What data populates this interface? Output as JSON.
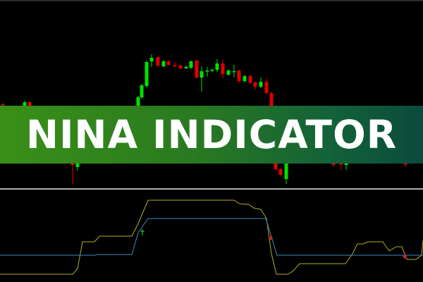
{
  "banner": {
    "title": "NINA INDICATOR"
  },
  "colors": {
    "background": "#000000",
    "bull": "#00e000",
    "bear": "#e00000",
    "signal_line": "#b0b020",
    "baseline": "#3a8cc0",
    "separator": "#b0b0b0"
  },
  "chart_data": [
    {
      "type": "candlestick",
      "candles": [
        {
          "x": 4,
          "o": 252,
          "c": 251,
          "h": 254,
          "l": 249
        },
        {
          "x": 35,
          "o": 250,
          "c": 255,
          "h": 257,
          "l": 248
        },
        {
          "x": 42,
          "o": 255,
          "c": 250,
          "h": 256,
          "l": 248
        },
        {
          "x": 103,
          "o": 170,
          "c": 166,
          "h": 172,
          "l": 139
        },
        {
          "x": 110,
          "o": 163,
          "c": 168,
          "h": 170,
          "l": 158
        },
        {
          "x": 196,
          "o": 250,
          "c": 262,
          "h": 264,
          "l": 248
        },
        {
          "x": 201,
          "o": 262,
          "c": 279,
          "h": 281,
          "l": 260
        },
        {
          "x": 208,
          "o": 278,
          "c": 312,
          "h": 314,
          "l": 276
        },
        {
          "x": 215,
          "o": 313,
          "c": 318,
          "h": 323,
          "l": 305
        },
        {
          "x": 224,
          "o": 319,
          "c": 307,
          "h": 320,
          "l": 305
        },
        {
          "x": 232,
          "o": 306,
          "c": 313,
          "h": 315,
          "l": 304
        },
        {
          "x": 239,
          "o": 313,
          "c": 308,
          "h": 315,
          "l": 307
        },
        {
          "x": 248,
          "o": 308,
          "c": 306,
          "h": 312,
          "l": 305
        },
        {
          "x": 256,
          "o": 307,
          "c": 303,
          "h": 309,
          "l": 302
        },
        {
          "x": 264,
          "o": 303,
          "c": 305,
          "h": 307,
          "l": 302
        },
        {
          "x": 271,
          "o": 304,
          "c": 313,
          "h": 314,
          "l": 302
        },
        {
          "x": 279,
          "o": 314,
          "c": 290,
          "h": 315,
          "l": 288
        },
        {
          "x": 286,
          "o": 290,
          "c": 299,
          "h": 306,
          "l": 270
        },
        {
          "x": 294,
          "o": 299,
          "c": 300,
          "h": 305,
          "l": 291
        },
        {
          "x": 301,
          "o": 300,
          "c": 301,
          "h": 303,
          "l": 298
        },
        {
          "x": 308,
          "o": 301,
          "c": 310,
          "h": 316,
          "l": 298
        },
        {
          "x": 316,
          "o": 310,
          "c": 295,
          "h": 315,
          "l": 289
        },
        {
          "x": 324,
          "o": 294,
          "c": 300,
          "h": 302,
          "l": 293
        },
        {
          "x": 332,
          "o": 298,
          "c": 299,
          "h": 308,
          "l": 290
        },
        {
          "x": 339,
          "o": 300,
          "c": 285,
          "h": 301,
          "l": 282
        },
        {
          "x": 347,
          "o": 285,
          "c": 292,
          "h": 294,
          "l": 283
        },
        {
          "x": 355,
          "o": 292,
          "c": 283,
          "h": 295,
          "l": 281
        },
        {
          "x": 362,
          "o": 283,
          "c": 277,
          "h": 285,
          "l": 273
        },
        {
          "x": 370,
          "o": 277,
          "c": 284,
          "h": 290,
          "l": 275
        },
        {
          "x": 378,
          "o": 284,
          "c": 268,
          "h": 288,
          "l": 266
        },
        {
          "x": 385,
          "o": 268,
          "c": 250,
          "h": 270,
          "l": 248
        },
        {
          "x": 391,
          "o": 168,
          "c": 160,
          "h": 170,
          "l": 158
        },
        {
          "x": 398,
          "o": 160,
          "c": 152,
          "h": 162,
          "l": 150
        },
        {
          "x": 406,
          "o": 146,
          "c": 168,
          "h": 170,
          "l": 139
        },
        {
          "x": 473,
          "o": 168,
          "c": 166,
          "h": 170,
          "l": 163
        },
        {
          "x": 484,
          "o": 168,
          "c": 167,
          "h": 170,
          "l": 158
        },
        {
          "x": 491,
          "o": 166,
          "c": 168,
          "h": 170,
          "l": 159
        },
        {
          "x": 575,
          "o": 168,
          "c": 167,
          "h": 170,
          "l": 163
        }
      ]
    },
    {
      "type": "line",
      "series": [
        {
          "color": "#b0b020",
          "points": [
            [
              0,
              11
            ],
            [
              103,
              11
            ],
            [
              110,
              19
            ],
            [
              117,
              57
            ],
            [
              134,
              57
            ],
            [
              141,
              65
            ],
            [
              187,
              65
            ],
            [
              196,
              83
            ],
            [
              210,
              116
            ],
            [
              332,
              116
            ],
            [
              340,
              111
            ],
            [
              353,
              110
            ],
            [
              360,
              105
            ],
            [
              370,
              103
            ],
            [
              378,
              90
            ],
            [
              385,
              40
            ],
            [
              392,
              11
            ],
            [
              408,
              11
            ],
            [
              415,
              15
            ],
            [
              425,
              26
            ],
            [
              490,
              26
            ],
            [
              500,
              40
            ],
            [
              507,
              54
            ],
            [
              515,
              54
            ],
            [
              522,
              57
            ],
            [
              543,
              57
            ],
            [
              552,
              44
            ],
            [
              562,
              50
            ],
            [
              570,
              50
            ],
            [
              577,
              32
            ],
            [
              590,
              32
            ],
            [
              598,
              38
            ],
            [
              600,
              59
            ]
          ]
        },
        {
          "color": "#3a8cc0",
          "points": [
            [
              0,
              38
            ],
            [
              135,
              38
            ],
            [
              137,
              39
            ],
            [
              187,
              39
            ],
            [
              196,
              70
            ],
            [
              210,
              90
            ],
            [
              377,
              90
            ],
            [
              393,
              38
            ],
            [
              600,
              38
            ]
          ]
        }
      ],
      "signals": [
        {
          "x": 202,
          "level": 70,
          "direction": "up",
          "color": "#1a9a1a"
        },
        {
          "x": 384,
          "level": 64,
          "direction": "down",
          "color": "#e02020"
        },
        {
          "x": 574,
          "level": 38,
          "direction": "down",
          "color": "#e02020"
        }
      ]
    }
  ]
}
